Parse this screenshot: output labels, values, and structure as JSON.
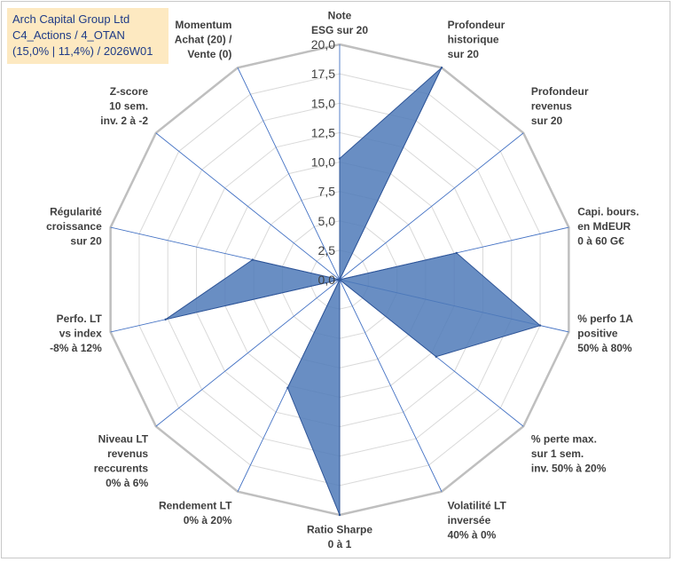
{
  "title": {
    "line1": "Arch Capital Group Ltd",
    "line2": "C4_Actions / 4_OTAN",
    "line3": "(15,0% | 11,4%) / 2026W01"
  },
  "colors": {
    "grid": "#d9d9d9",
    "spoke": "#4472c4",
    "fill": "#4f7ab8",
    "stroke": "#2f5597",
    "title_bg": "#fde9c1",
    "title_text": "#1f3b87"
  },
  "chart_data": {
    "type": "radar",
    "rmin": 0,
    "rmax": 20,
    "ticks": [
      "0,0",
      "2,5",
      "5,0",
      "7,5",
      "10,0",
      "12,5",
      "15,0",
      "17,5",
      "20,0"
    ],
    "tick_values": [
      0,
      2.5,
      5,
      7.5,
      10,
      12.5,
      15,
      17.5,
      20
    ],
    "categories": [
      {
        "lines": [
          "Note",
          "ESG sur 20"
        ]
      },
      {
        "lines": [
          "Profondeur",
          "historique",
          "sur 20"
        ]
      },
      {
        "lines": [
          "Profondeur",
          "revenus",
          "sur 20"
        ]
      },
      {
        "lines": [
          "Capi. bours.",
          "en MdEUR",
          "0 à 60 G€"
        ]
      },
      {
        "lines": [
          "% perfo 1A",
          "positive",
          "50% à 80%"
        ]
      },
      {
        "lines": [
          "% perte max.",
          "sur 1 sem.",
          "inv. 50% à 20%"
        ]
      },
      {
        "lines": [
          "Volatilité LT",
          "inversée",
          "40% à 0%"
        ]
      },
      {
        "lines": [
          "Ratio Sharpe",
          "0 à 1"
        ]
      },
      {
        "lines": [
          "Rendement LT",
          "0% à 20%"
        ]
      },
      {
        "lines": [
          "Niveau LT",
          "revenus",
          "reccurents",
          "0% à 6%"
        ]
      },
      {
        "lines": [
          "Perfo. LT",
          "vs index",
          "-8% à 12%"
        ]
      },
      {
        "lines": [
          "Régularité",
          "croissance",
          "sur 20"
        ]
      },
      {
        "lines": [
          "Z-score",
          "10 sem.",
          "inv. 2 à -2"
        ]
      },
      {
        "lines": [
          "Momentum",
          "Achat (20) /",
          "Vente (0)"
        ]
      }
    ],
    "series": [
      {
        "name": "Arch Capital Group Ltd",
        "values": [
          10.3,
          20.0,
          0.0,
          10.2,
          17.5,
          10.5,
          0.0,
          20.0,
          10.2,
          0.0,
          15.2,
          7.6,
          0.0,
          0.0
        ]
      }
    ],
    "grid": true,
    "legend": "none"
  }
}
